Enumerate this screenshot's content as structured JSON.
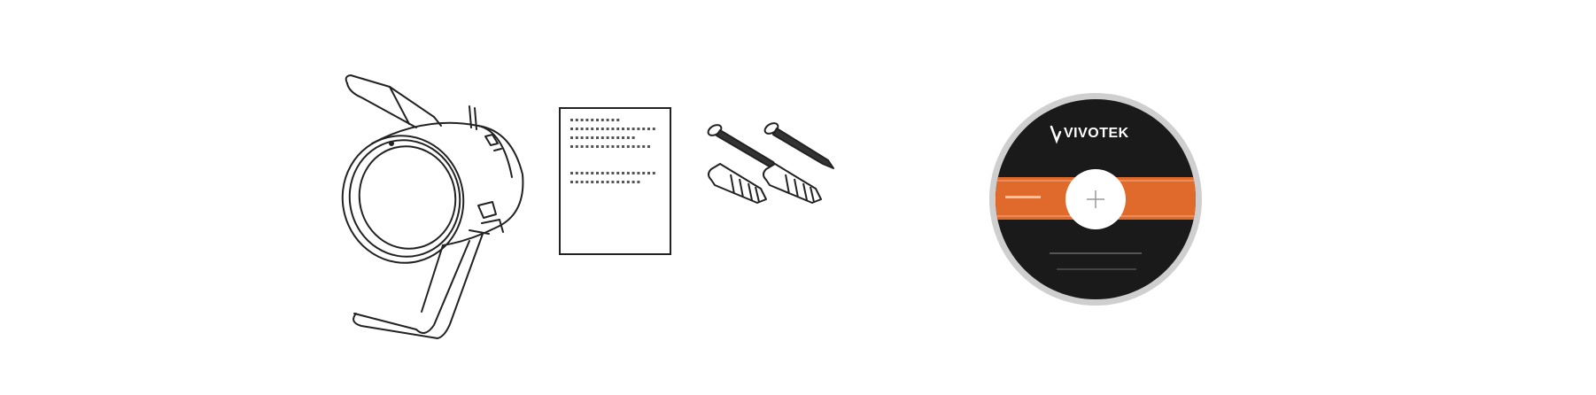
{
  "items": [
    {
      "name": "camera",
      "icon": "dome-camera-with-mounting-springs-icon"
    },
    {
      "name": "document",
      "icon": "quick-installation-guide-icon"
    },
    {
      "name": "screws",
      "icon": "screws-and-wall-anchors-icon"
    },
    {
      "name": "cd",
      "icon": "software-cd-icon"
    }
  ],
  "cd": {
    "brand": "VIVOTEK",
    "colors": {
      "disc": "#1a1a1a",
      "band": "#e06a2c",
      "rim": "#cfcfcf",
      "hub": "#ffffff"
    }
  }
}
